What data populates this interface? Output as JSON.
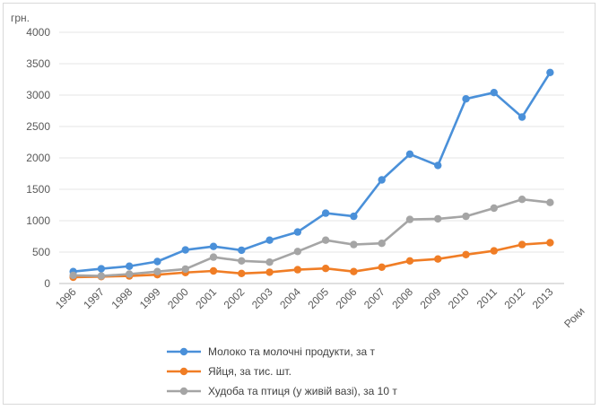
{
  "chart_data": {
    "type": "line",
    "title": "",
    "y_unit_label": "грн.",
    "x_unit_label": "Роки",
    "xlabel": "Роки",
    "ylabel": "грн.",
    "ylim": [
      0,
      4000
    ],
    "yticks": [
      0,
      500,
      1000,
      1500,
      2000,
      2500,
      3000,
      3500,
      4000
    ],
    "grid": true,
    "legend_position": "bottom",
    "categories": [
      "1996",
      "1997",
      "1998",
      "1999",
      "2000",
      "2001",
      "2002",
      "2003",
      "2004",
      "2005",
      "2006",
      "2007",
      "2008",
      "2009",
      "2010",
      "2011",
      "2012",
      "2013"
    ],
    "series": [
      {
        "name": "Молоко та молочні продукти, за т",
        "color": "#4a90d9",
        "values": [
          190,
          235,
          275,
          350,
          535,
          590,
          530,
          690,
          820,
          1120,
          1070,
          1650,
          2060,
          1880,
          2940,
          3040,
          2650,
          3360
        ]
      },
      {
        "name": "Яйця, за тис. шт.",
        "color": "#f07d25",
        "values": [
          100,
          110,
          120,
          140,
          175,
          200,
          160,
          180,
          220,
          240,
          190,
          260,
          360,
          390,
          460,
          520,
          620,
          650
        ]
      },
      {
        "name": "Худоба та птиця (у живій вазі), за 10 т",
        "color": "#a5a5a5",
        "values": [
          130,
          120,
          150,
          190,
          230,
          420,
          360,
          340,
          510,
          690,
          620,
          640,
          1020,
          1030,
          1070,
          1200,
          1340,
          1290
        ]
      }
    ]
  }
}
